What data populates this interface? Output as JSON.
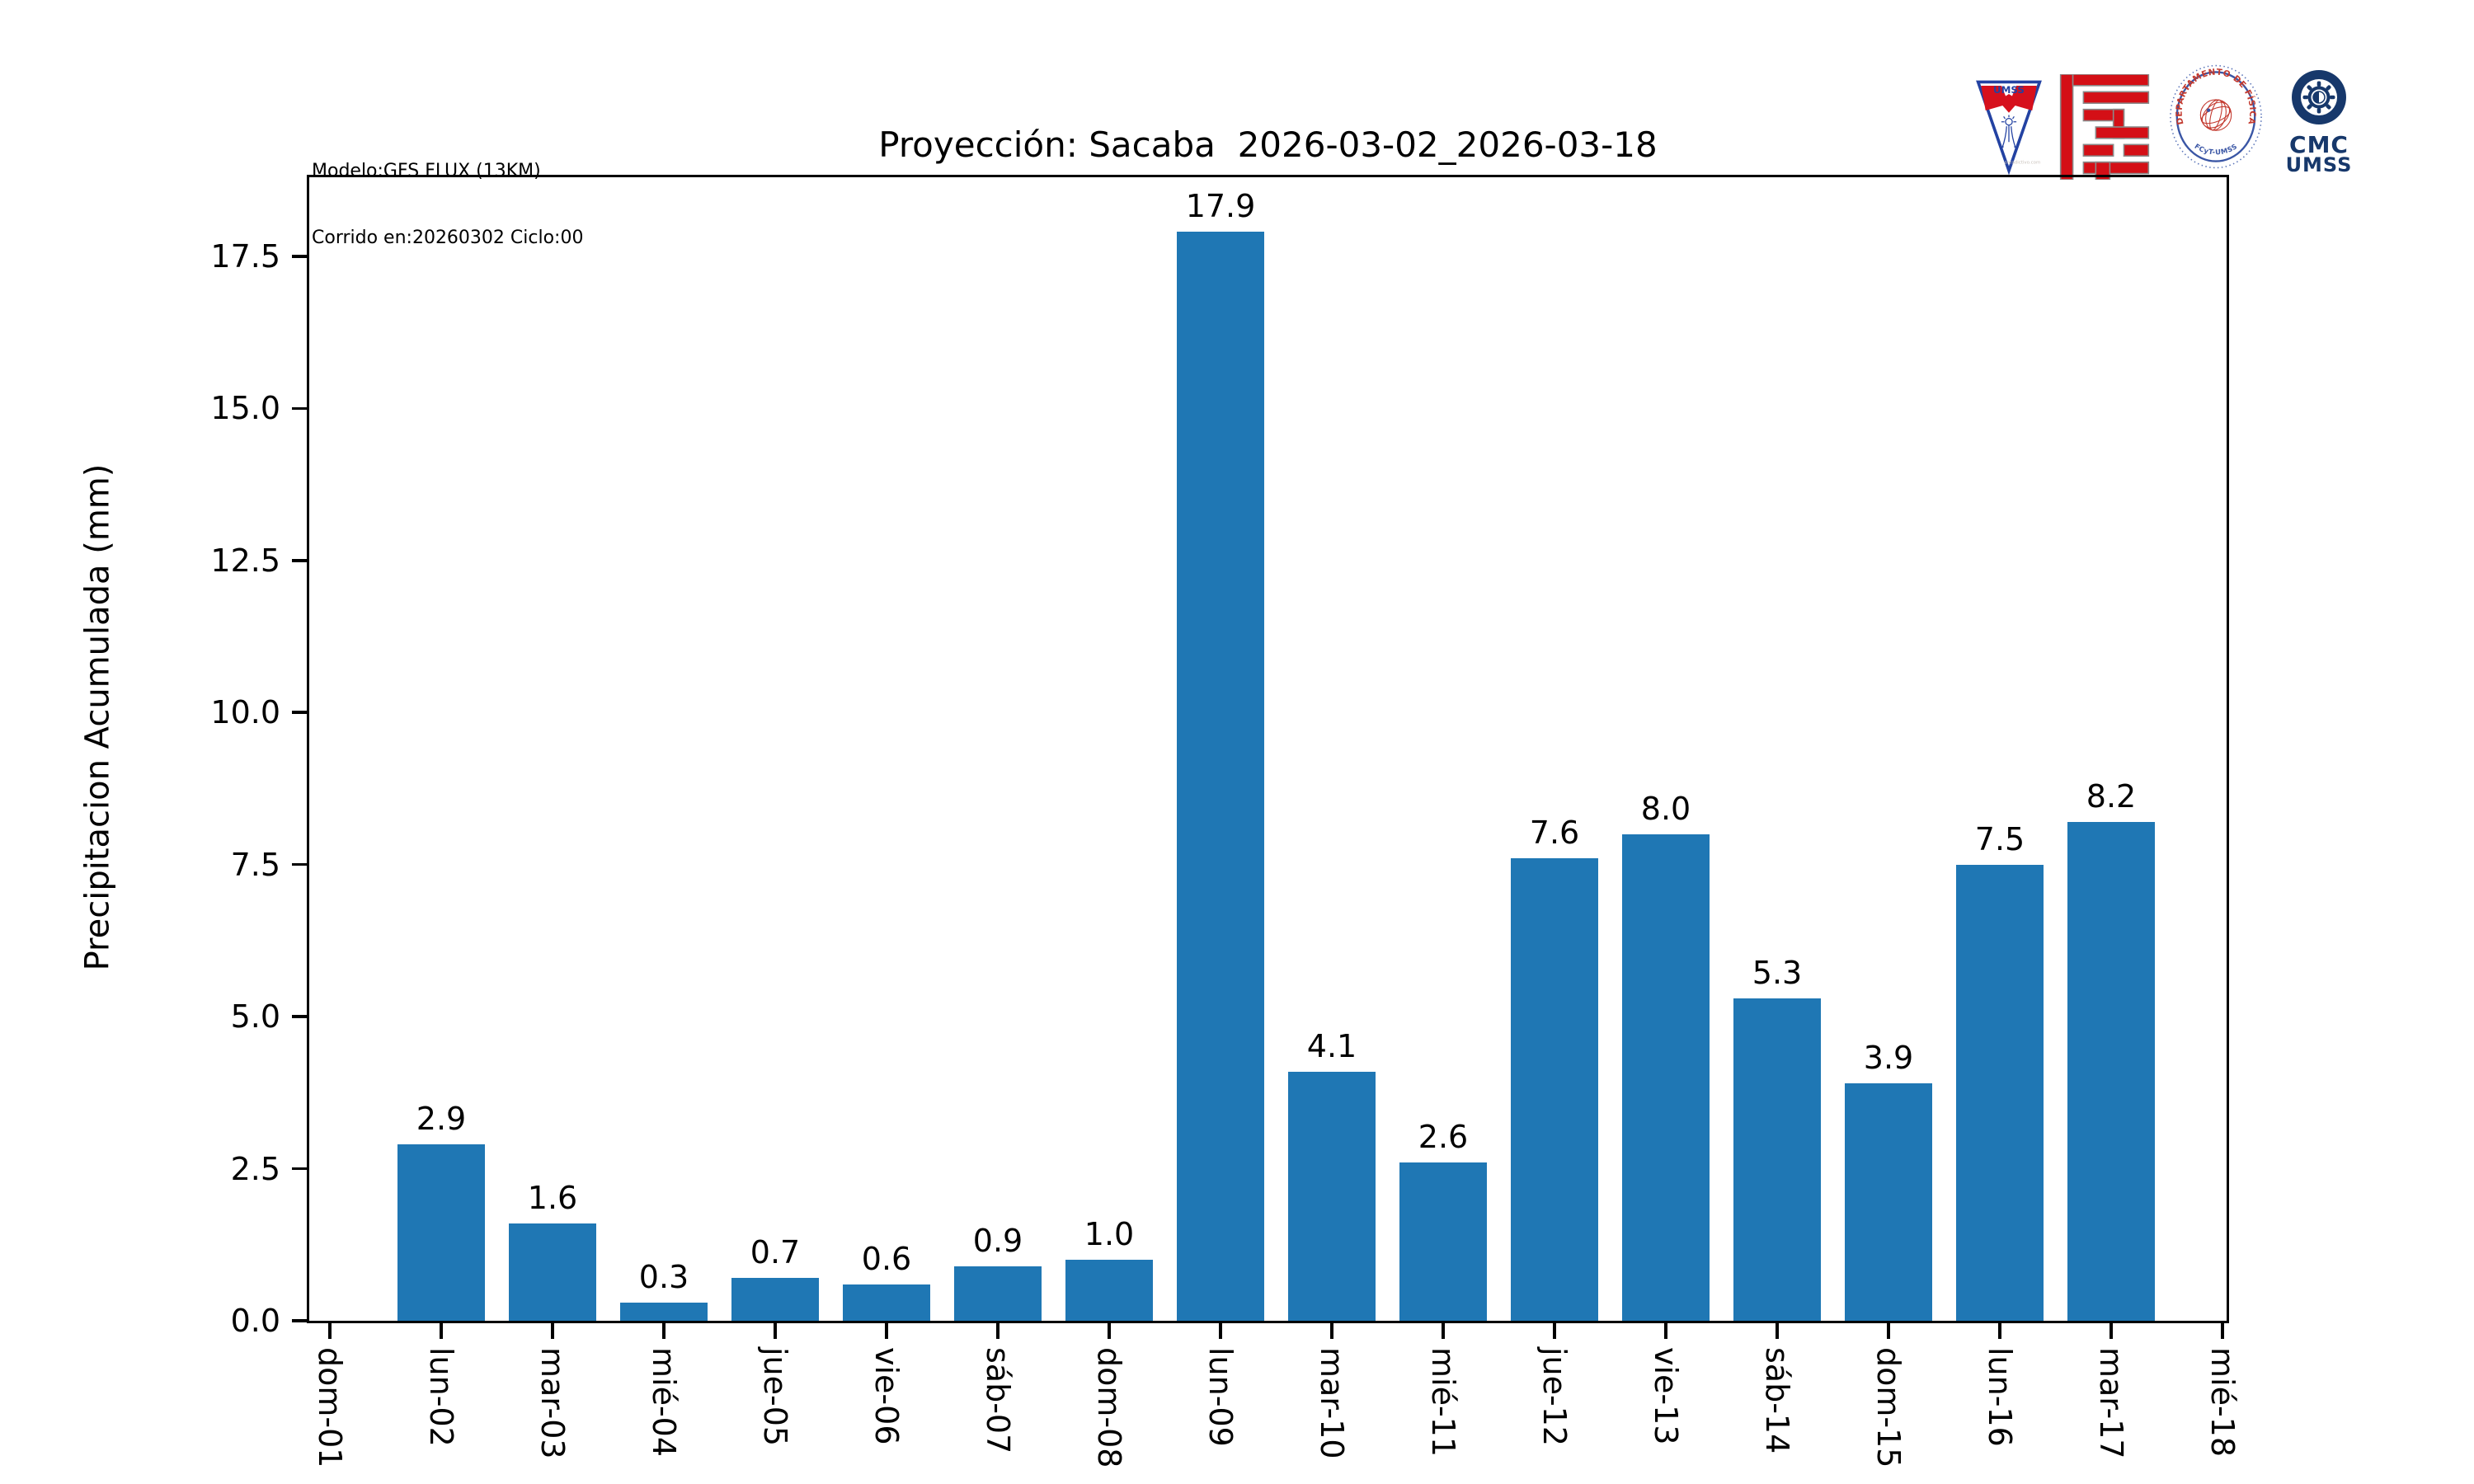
{
  "header": {
    "model_line1": "Modelo:GFS FLUX (13KM)",
    "model_line2": "Corrido en:20260302 Ciclo:00"
  },
  "logos": {
    "umss_pennant": {
      "label": "UMSS",
      "watermark": "preadictivo.com",
      "colors": {
        "blue": "#2342a2",
        "red": "#d6101c"
      }
    },
    "fcyt": {
      "color": "#d40f16"
    },
    "fisica_seal": {
      "arc_text": "DEPARTAMENTO DE FÍSICA",
      "bottom_text": "FCyT-UMSS",
      "colors": {
        "blue": "#3a56a5",
        "red": "#c3392e"
      }
    },
    "cmc": {
      "line1": "CMC",
      "line2": "UMSS",
      "color": "#17386b"
    }
  },
  "chart_data": {
    "type": "bar",
    "title": "Proyección: Sacaba  2026-03-02_2026-03-18",
    "xlabel": "",
    "ylabel": "Precipitacion Acumulada (mm)",
    "categories": [
      "dom-01",
      "lun-02",
      "mar-03",
      "mié-04",
      "jue-05",
      "vie-06",
      "sáb-07",
      "dom-08",
      "lun-09",
      "mar-10",
      "mié-11",
      "jue-12",
      "vie-13",
      "sáb-14",
      "dom-15",
      "lun-16",
      "mar-17",
      "mié-18"
    ],
    "values": [
      0,
      2.9,
      1.6,
      0.3,
      0.7,
      0.6,
      0.9,
      1.0,
      17.9,
      4.1,
      2.6,
      7.6,
      8.0,
      5.3,
      3.9,
      7.5,
      8.2,
      0
    ],
    "bar_labels": [
      "",
      "2.9",
      "1.6",
      "0.3",
      "0.7",
      "0.6",
      "0.9",
      "1.0",
      "17.9",
      "4.1",
      "2.6",
      "7.6",
      "8.0",
      "5.3",
      "3.9",
      "7.5",
      "8.2",
      ""
    ],
    "yticks": [
      0,
      2.5,
      5.0,
      7.5,
      10.0,
      12.5,
      15.0,
      17.5
    ],
    "ytick_labels": [
      "0.0",
      "2.5",
      "5.0",
      "7.5",
      "10.0",
      "12.5",
      "15.0",
      "17.5"
    ],
    "ylim": [
      0,
      18.8
    ],
    "grid": false,
    "legend": null,
    "bar_color": "#1f77b4"
  }
}
